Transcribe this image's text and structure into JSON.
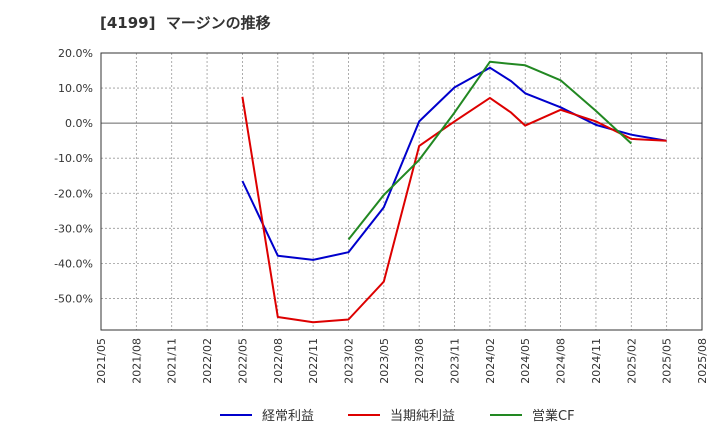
{
  "chart_data": {
    "type": "line",
    "title": "[4199]  マージンの推移",
    "xlabel": "",
    "ylabel": "",
    "ylim": [
      -0.59,
      0.2
    ],
    "y_ticks": [
      0.2,
      0.1,
      0.0,
      -0.1,
      -0.2,
      -0.3,
      -0.4,
      -0.5
    ],
    "y_tick_labels": [
      "20.0%",
      "10.0%",
      "0.0%",
      "-10.0%",
      "-20.0%",
      "-30.0%",
      "-40.0%",
      "-50.0%"
    ],
    "x_tick_labels": [
      "2021/05",
      "2021/08",
      "2021/11",
      "2022/02",
      "2022/05",
      "2022/08",
      "2022/11",
      "2023/02",
      "2023/05",
      "2023/08",
      "2023/11",
      "2024/02",
      "2024/05",
      "2024/08",
      "2024/11",
      "2025/02",
      "2025/05",
      "2025/08"
    ],
    "grid": true,
    "legend_position": "bottom",
    "series": [
      {
        "name": "経常利益",
        "color": "#0000cc",
        "points": [
          [
            4,
            -0.165
          ],
          [
            5,
            -0.378
          ],
          [
            6,
            -0.39
          ],
          [
            7,
            -0.368
          ],
          [
            8,
            -0.24
          ],
          [
            9,
            0.005
          ],
          [
            10,
            0.102
          ],
          [
            11,
            0.158
          ],
          [
            11.6,
            0.12
          ],
          [
            12,
            0.085
          ],
          [
            13,
            0.045
          ],
          [
            14,
            -0.005
          ],
          [
            15,
            -0.033
          ],
          [
            16,
            -0.05
          ]
        ]
      },
      {
        "name": "当期純利益",
        "color": "#dd0000",
        "points": [
          [
            4,
            0.075
          ],
          [
            5,
            -0.553
          ],
          [
            6,
            -0.568
          ],
          [
            7,
            -0.56
          ],
          [
            8,
            -0.452
          ],
          [
            9,
            -0.065
          ],
          [
            10,
            0.005
          ],
          [
            11,
            0.072
          ],
          [
            11.6,
            0.03
          ],
          [
            12,
            -0.007
          ],
          [
            13,
            0.038
          ],
          [
            14,
            0.005
          ],
          [
            15,
            -0.045
          ],
          [
            16,
            -0.05
          ]
        ]
      },
      {
        "name": "営業CF",
        "color": "#228822",
        "points": [
          [
            7,
            -0.332
          ],
          [
            8,
            -0.205
          ],
          [
            9,
            -0.105
          ],
          [
            10,
            0.03
          ],
          [
            11,
            0.175
          ],
          [
            12,
            0.165
          ],
          [
            13,
            0.122
          ],
          [
            14,
            0.035
          ],
          [
            15,
            -0.058
          ]
        ]
      }
    ]
  }
}
